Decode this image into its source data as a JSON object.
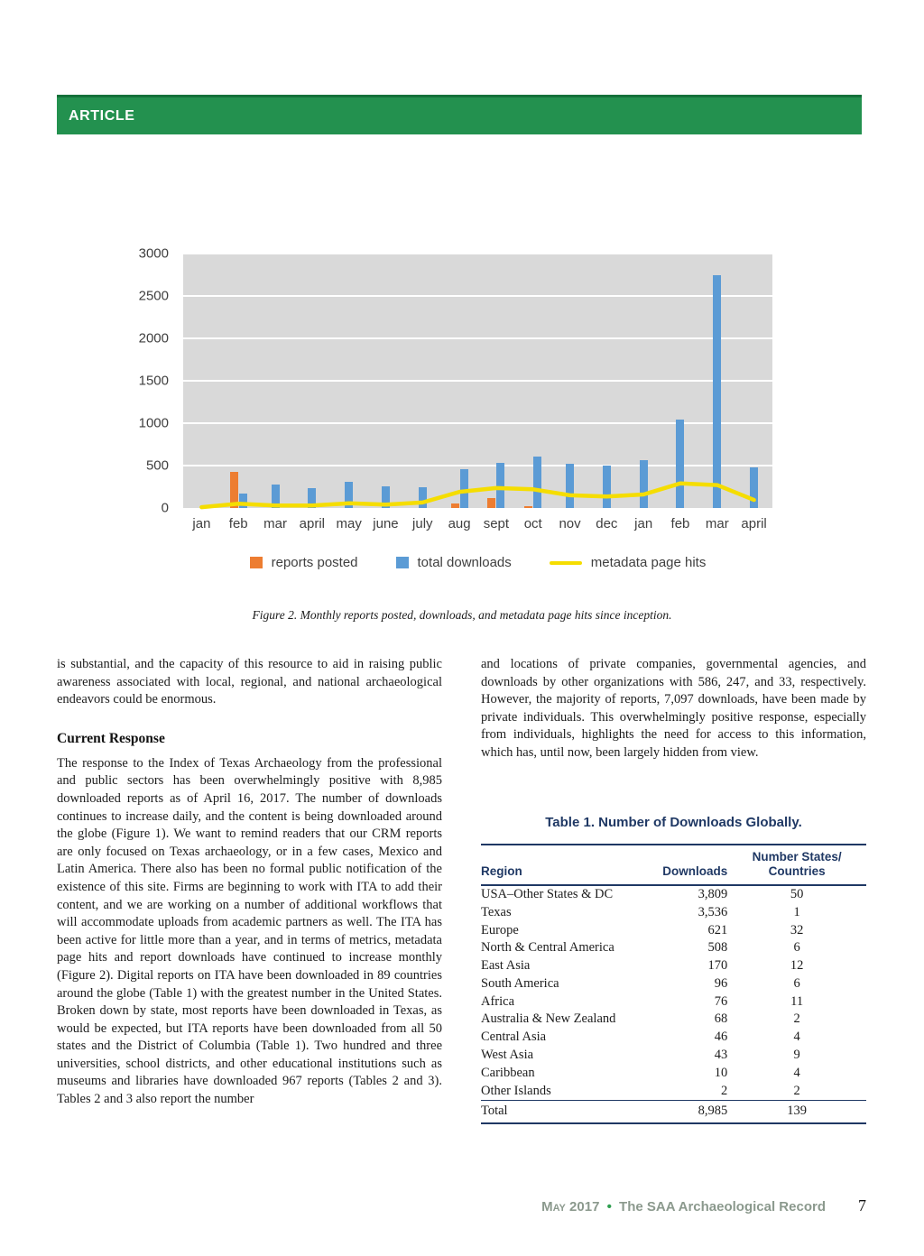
{
  "banner": {
    "label": "ARTICLE"
  },
  "figure": {
    "caption": "Figure 2. Monthly reports posted, downloads, and metadata page hits since inception."
  },
  "chart_data": {
    "type": "bar",
    "title": "",
    "xlabel": "",
    "ylabel": "",
    "categories": [
      "jan",
      "feb",
      "mar",
      "april",
      "may",
      "june",
      "july",
      "aug",
      "sept",
      "oct",
      "nov",
      "dec",
      "jan",
      "feb",
      "mar",
      "april"
    ],
    "series": [
      {
        "name": "reports posted",
        "type": "bar",
        "color": "#ed7d31",
        "values": [
          0,
          430,
          0,
          0,
          0,
          0,
          0,
          55,
          120,
          25,
          0,
          0,
          0,
          0,
          0,
          0
        ]
      },
      {
        "name": "total downloads",
        "type": "bar",
        "color": "#5b9bd5",
        "values": [
          0,
          170,
          280,
          230,
          310,
          260,
          240,
          460,
          530,
          610,
          520,
          500,
          560,
          1040,
          2750,
          480
        ]
      },
      {
        "name": "metadata page hits",
        "type": "line",
        "color": "#f5dd00",
        "values": [
          10,
          50,
          30,
          30,
          55,
          40,
          65,
          190,
          235,
          220,
          150,
          135,
          160,
          290,
          270,
          95
        ]
      }
    ],
    "ylim": [
      0,
      3000
    ],
    "ytick": 500,
    "grid": true,
    "legend_position": "bottom",
    "plot_bg": "#d9d9d9"
  },
  "body": {
    "left_para1": "is substantial, and the capacity of this resource to aid in raising public awareness associated with local, regional, and national archaeological endeavors could be enormous.",
    "heading": "Current Response",
    "left_para2": "The response to the Index of Texas Archaeology from the professional and public sectors has been overwhelmingly positive with 8,985 downloaded reports as of April 16, 2017. The number of downloads continues to increase daily, and the content is being downloaded around the globe (Figure 1). We want to remind readers that our CRM reports are only focused on Texas archaeology, or in a few cases, Mexico and Latin America. There also has been no formal public notification of the existence of this site. Firms are beginning to work with ITA to add their content, and we are working on a number of additional workflows that will accommodate uploads from academic partners as well. The ITA has been active for little more than a year, and in terms of metrics, metadata page hits and report downloads have continued to increase monthly (Figure 2). Digital reports on ITA have been downloaded in 89 countries around the globe (Table 1) with the greatest number in the United States. Broken down by state, most reports have been downloaded in Texas, as would be expected, but ITA reports have been downloaded from all 50 states and the District of Columbia (Table 1). Two hundred and three universities, school districts, and other educational institutions such as museums and libraries have downloaded 967 reports (Tables 2 and 3). Tables 2 and 3 also report the number",
    "right_para1": "and locations of private companies, governmental agencies, and downloads by other organizations with 586, 247, and 33, respectively. However, the majority of reports, 7,097 downloads, have been made by private individuals. This overwhelmingly positive response, especially from individuals, highlights the need for access to this information, which has, until now, been largely hidden from view."
  },
  "table1": {
    "title": "Table 1. Number of Downloads Globally.",
    "columns": [
      "Region",
      "Downloads",
      "Number States/\nCountries"
    ],
    "rows": [
      [
        "USA–Other States & DC",
        "3,809",
        "50"
      ],
      [
        "Texas",
        "3,536",
        "1"
      ],
      [
        "Europe",
        "621",
        "32"
      ],
      [
        "North & Central America",
        "508",
        "6"
      ],
      [
        "East Asia",
        "170",
        "12"
      ],
      [
        "South America",
        "96",
        "6"
      ],
      [
        "Africa",
        "76",
        "11"
      ],
      [
        "Australia & New Zealand",
        "68",
        "2"
      ],
      [
        "Central Asia",
        "46",
        "4"
      ],
      [
        "West Asia",
        "43",
        "9"
      ],
      [
        "Caribbean",
        "10",
        "4"
      ],
      [
        "Other Islands",
        "2",
        "2"
      ]
    ],
    "total_row": [
      "Total",
      "8,985",
      "139"
    ]
  },
  "footer": {
    "date": "May 2017",
    "bullet": "•",
    "journal": "The SAA Archaeological Record",
    "page_number": "7"
  },
  "colors": {
    "banner_green": "#23914f",
    "navy": "#1f3864",
    "bar_blue": "#5b9bd5",
    "bar_orange": "#ed7d31",
    "line_yellow": "#f5dd00",
    "plot_gray": "#d9d9d9",
    "footer_gray": "#8b998d",
    "footer_green": "#2e9e4f"
  }
}
